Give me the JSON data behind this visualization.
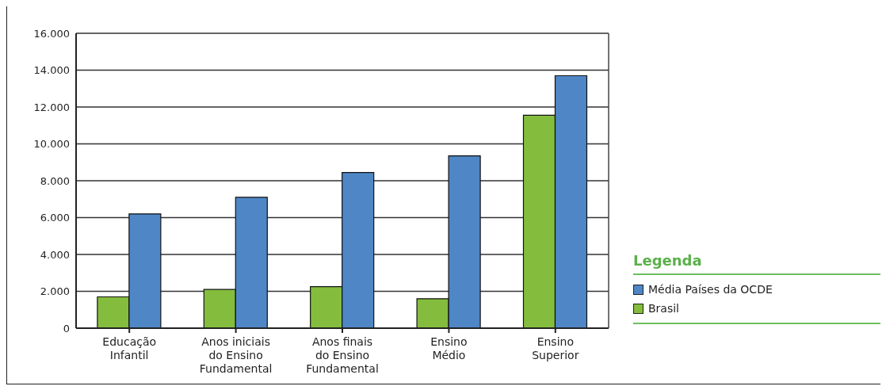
{
  "chart_data": {
    "type": "bar",
    "categories": [
      "Educação\nInfantil",
      "Anos iniciais\ndo Ensino\nFundamental",
      "Anos finais\ndo Ensino\nFundamental",
      "Ensino\nMédio",
      "Ensino\nSuperior"
    ],
    "series": [
      {
        "name": "Brasil",
        "color": "#84bd3e",
        "values": [
          1700,
          2100,
          2250,
          1600,
          11550
        ]
      },
      {
        "name": "Média Países da OCDE",
        "color": "#4f86c6",
        "values": [
          6200,
          7100,
          8450,
          9350,
          13700
        ]
      }
    ],
    "ylim": [
      0,
      16000
    ],
    "yticks": [
      {
        "value": 0,
        "label": "0"
      },
      {
        "value": 2000,
        "label": "2.000"
      },
      {
        "value": 4000,
        "label": "4.000"
      },
      {
        "value": 6000,
        "label": "6.000"
      },
      {
        "value": 8000,
        "label": "8.000"
      },
      {
        "value": 10000,
        "label": "10.000"
      },
      {
        "value": 12000,
        "label": "12.000"
      },
      {
        "value": 14000,
        "label": "14.000"
      },
      {
        "value": 16000,
        "label": "16.000"
      }
    ],
    "grid": "y",
    "legend": "right",
    "legend_title": "Legenda"
  }
}
